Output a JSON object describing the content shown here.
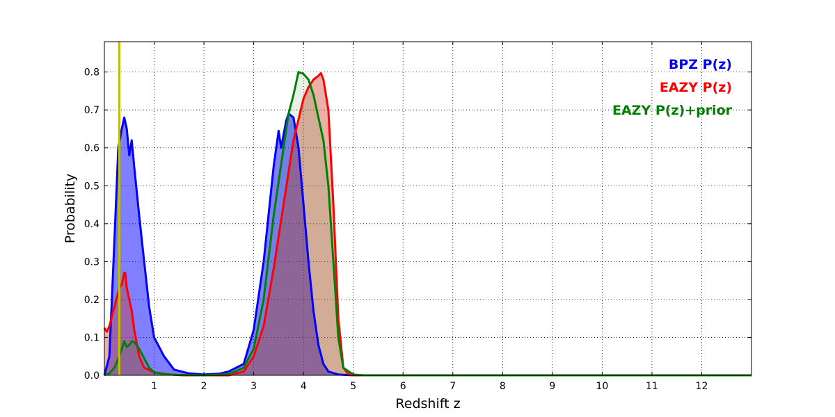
{
  "chart_data": {
    "type": "area",
    "xlabel": "Redshift z",
    "ylabel": "Probability",
    "xlim": [
      0,
      13
    ],
    "ylim": [
      0,
      0.88
    ],
    "x_ticks": [
      1,
      2,
      3,
      4,
      5,
      6,
      7,
      8,
      9,
      10,
      11,
      12
    ],
    "x_tick_labels": [
      "1",
      "2",
      "3",
      "4",
      "5",
      "6",
      "7",
      "8",
      "9",
      "10",
      "11",
      "12"
    ],
    "y_ticks": [
      0,
      0.1,
      0.2,
      0.3,
      0.4,
      0.5,
      0.6,
      0.7,
      0.8
    ],
    "y_tick_labels": [
      "0.0",
      "0.1",
      "0.2",
      "0.3",
      "0.4",
      "0.5",
      "0.6",
      "0.7",
      "0.8"
    ],
    "grid": true,
    "legend_position": "top-right",
    "vertical_line": {
      "x": 0.3,
      "color": "#bfbf00"
    },
    "series": [
      {
        "name": "BPZ P(z)",
        "color": "#0000ff",
        "fill": "rgba(0,0,255,0.5)",
        "points": [
          [
            0,
            0
          ],
          [
            0.1,
            0.05
          ],
          [
            0.2,
            0.35
          ],
          [
            0.28,
            0.6
          ],
          [
            0.35,
            0.65
          ],
          [
            0.4,
            0.68
          ],
          [
            0.45,
            0.65
          ],
          [
            0.5,
            0.58
          ],
          [
            0.55,
            0.62
          ],
          [
            0.6,
            0.55
          ],
          [
            0.7,
            0.42
          ],
          [
            0.8,
            0.3
          ],
          [
            0.9,
            0.18
          ],
          [
            1.0,
            0.1
          ],
          [
            1.2,
            0.05
          ],
          [
            1.4,
            0.015
          ],
          [
            1.7,
            0.005
          ],
          [
            2.0,
            0.002
          ],
          [
            2.3,
            0.004
          ],
          [
            2.5,
            0.01
          ],
          [
            2.8,
            0.03
          ],
          [
            3.0,
            0.12
          ],
          [
            3.2,
            0.3
          ],
          [
            3.4,
            0.55
          ],
          [
            3.5,
            0.645
          ],
          [
            3.55,
            0.6
          ],
          [
            3.65,
            0.67
          ],
          [
            3.7,
            0.69
          ],
          [
            3.8,
            0.68
          ],
          [
            3.9,
            0.6
          ],
          [
            4.0,
            0.45
          ],
          [
            4.1,
            0.3
          ],
          [
            4.2,
            0.17
          ],
          [
            4.3,
            0.08
          ],
          [
            4.4,
            0.03
          ],
          [
            4.5,
            0.01
          ],
          [
            4.7,
            0.002
          ],
          [
            5.0,
            0
          ],
          [
            13,
            0
          ]
        ]
      },
      {
        "name": "EAZY P(z)",
        "color": "#ff0000",
        "fill": "rgba(204,60,40,0.4)",
        "points": [
          [
            0,
            0.125
          ],
          [
            0.05,
            0.115
          ],
          [
            0.1,
            0.13
          ],
          [
            0.2,
            0.18
          ],
          [
            0.3,
            0.23
          ],
          [
            0.35,
            0.24
          ],
          [
            0.4,
            0.27
          ],
          [
            0.42,
            0.27
          ],
          [
            0.45,
            0.23
          ],
          [
            0.5,
            0.2
          ],
          [
            0.55,
            0.17
          ],
          [
            0.6,
            0.12
          ],
          [
            0.7,
            0.05
          ],
          [
            0.8,
            0.02
          ],
          [
            1.0,
            0.008
          ],
          [
            1.3,
            0.002
          ],
          [
            1.6,
            0
          ],
          [
            2.5,
            0
          ],
          [
            2.8,
            0.01
          ],
          [
            3.0,
            0.05
          ],
          [
            3.2,
            0.13
          ],
          [
            3.4,
            0.28
          ],
          [
            3.6,
            0.45
          ],
          [
            3.8,
            0.62
          ],
          [
            4.0,
            0.73
          ],
          [
            4.1,
            0.76
          ],
          [
            4.2,
            0.78
          ],
          [
            4.3,
            0.79
          ],
          [
            4.35,
            0.797
          ],
          [
            4.4,
            0.78
          ],
          [
            4.5,
            0.7
          ],
          [
            4.6,
            0.45
          ],
          [
            4.7,
            0.15
          ],
          [
            4.8,
            0.02
          ],
          [
            4.9,
            0.003
          ],
          [
            5.0,
            0
          ],
          [
            13,
            0
          ]
        ]
      },
      {
        "name": "EAZY P(z)+prior",
        "color": "#008000",
        "fill": "rgba(0,128,0,0.1)",
        "points": [
          [
            0,
            0
          ],
          [
            0.1,
            0.005
          ],
          [
            0.2,
            0.02
          ],
          [
            0.3,
            0.05
          ],
          [
            0.35,
            0.07
          ],
          [
            0.4,
            0.09
          ],
          [
            0.45,
            0.075
          ],
          [
            0.5,
            0.08
          ],
          [
            0.55,
            0.09
          ],
          [
            0.6,
            0.088
          ],
          [
            0.7,
            0.07
          ],
          [
            0.8,
            0.045
          ],
          [
            0.9,
            0.02
          ],
          [
            1.0,
            0.008
          ],
          [
            1.2,
            0.003
          ],
          [
            1.5,
            0.001
          ],
          [
            2.0,
            0
          ],
          [
            2.5,
            0.003
          ],
          [
            2.8,
            0.02
          ],
          [
            3.0,
            0.07
          ],
          [
            3.2,
            0.2
          ],
          [
            3.4,
            0.42
          ],
          [
            3.6,
            0.6
          ],
          [
            3.7,
            0.69
          ],
          [
            3.8,
            0.74
          ],
          [
            3.9,
            0.8
          ],
          [
            4.0,
            0.795
          ],
          [
            4.1,
            0.78
          ],
          [
            4.2,
            0.74
          ],
          [
            4.3,
            0.68
          ],
          [
            4.4,
            0.62
          ],
          [
            4.5,
            0.5
          ],
          [
            4.6,
            0.3
          ],
          [
            4.7,
            0.1
          ],
          [
            4.8,
            0.02
          ],
          [
            5.0,
            0.002
          ],
          [
            5.2,
            0
          ],
          [
            13,
            0
          ]
        ]
      }
    ]
  }
}
